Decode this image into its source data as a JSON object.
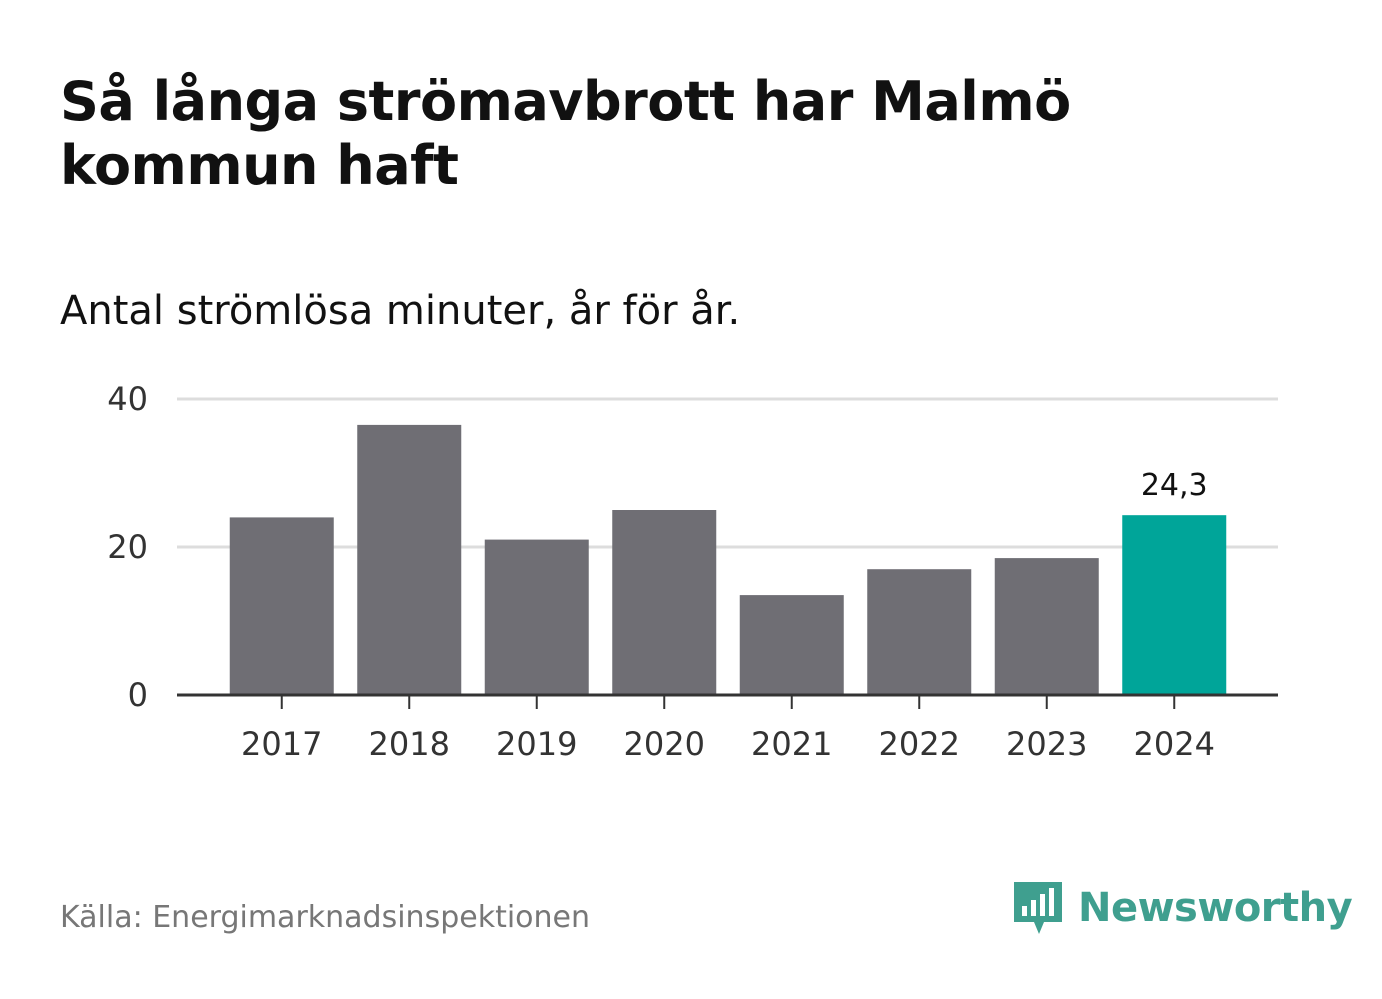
{
  "title": "Så långa strömavbrott har Malmö kommun haft",
  "subtitle": "Antal strömlösa minuter, år för år.",
  "source": "Källa: Energimarknadsinspektionen",
  "brand": "Newsworthy",
  "colors": {
    "bar": "#6f6e74",
    "highlight": "#00a599",
    "grid": "#dddddd",
    "axis": "#333333",
    "brand": "#3f9f8f"
  },
  "chart_data": {
    "type": "bar",
    "title": "Så långa strömavbrott har Malmö kommun haft",
    "subtitle": "Antal strömlösa minuter, år för år.",
    "xlabel": "",
    "ylabel": "",
    "categories": [
      "2017",
      "2018",
      "2019",
      "2020",
      "2021",
      "2022",
      "2023",
      "2024"
    ],
    "values": [
      24.0,
      36.5,
      21.0,
      25.0,
      13.5,
      17.0,
      18.5,
      24.3
    ],
    "highlight_index": 7,
    "data_labels": [
      {
        "index": 7,
        "text": "24,3"
      }
    ],
    "ylim": [
      0,
      40
    ],
    "yticks": [
      0,
      20,
      40
    ],
    "grid": true
  }
}
